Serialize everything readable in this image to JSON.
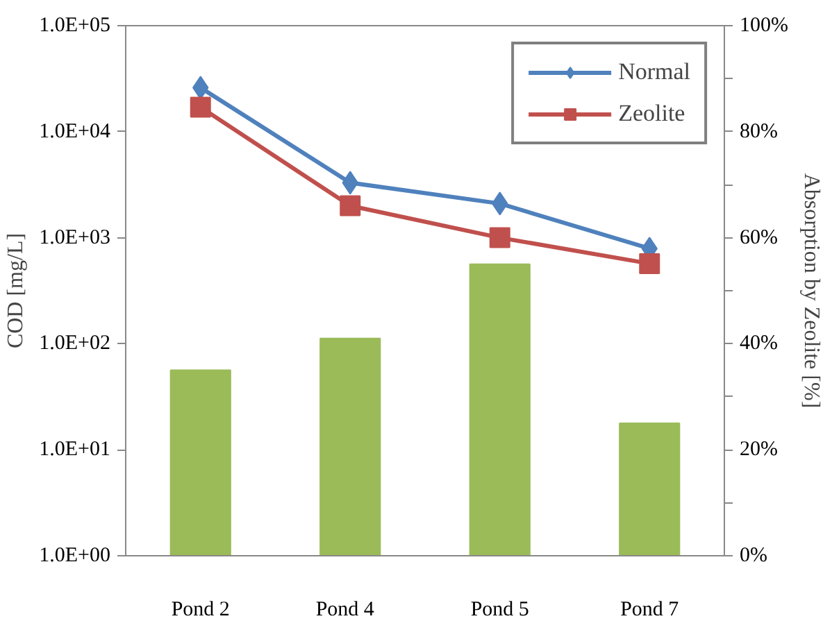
{
  "chart_data": {
    "type": "line",
    "categories": [
      "Pond 2",
      "Pond   4",
      "Pond 5",
      "Pond 7"
    ],
    "ylabel": "COD [mg/L]",
    "y2label": "Absorption by Zeolite [%]",
    "log": "y",
    "ylim": [
      1,
      100000
    ],
    "yticks": [
      {
        "value": 1,
        "label": "1.0E+00"
      },
      {
        "value": 10,
        "label": "1.0E+01"
      },
      {
        "value": 100,
        "label": "1.0E+02"
      },
      {
        "value": 1000,
        "label": "1.0E+03"
      },
      {
        "value": 10000,
        "label": "1.0E+04"
      },
      {
        "value": 100000,
        "label": "1.0E+05"
      }
    ],
    "y2lim": [
      0,
      100
    ],
    "y2ticks": [
      {
        "value": 0,
        "label": "0%"
      },
      {
        "value": 10,
        "label": null
      },
      {
        "value": 20,
        "label": "20%"
      },
      {
        "value": 30,
        "label": null
      },
      {
        "value": 40,
        "label": "40%"
      },
      {
        "value": 50,
        "label": null
      },
      {
        "value": 60,
        "label": "60%"
      },
      {
        "value": 70,
        "label": null
      },
      {
        "value": 80,
        "label": "80%"
      },
      {
        "value": 90,
        "label": null
      },
      {
        "value": 100,
        "label": "100%"
      }
    ],
    "grid": false,
    "legend": "top right",
    "series": [
      {
        "type": "bar",
        "axis": "y2",
        "color": "#9bbb59",
        "values": [
          35,
          41,
          55,
          25
        ]
      },
      {
        "name": "Normal",
        "color": "#4f81bd",
        "marker": "diamond",
        "values": [
          26000,
          3300,
          2100,
          790
        ]
      },
      {
        "name": "Zeolite",
        "color": "#c0504d",
        "marker": "square",
        "values": [
          17000,
          2000,
          1000,
          570
        ]
      }
    ]
  }
}
